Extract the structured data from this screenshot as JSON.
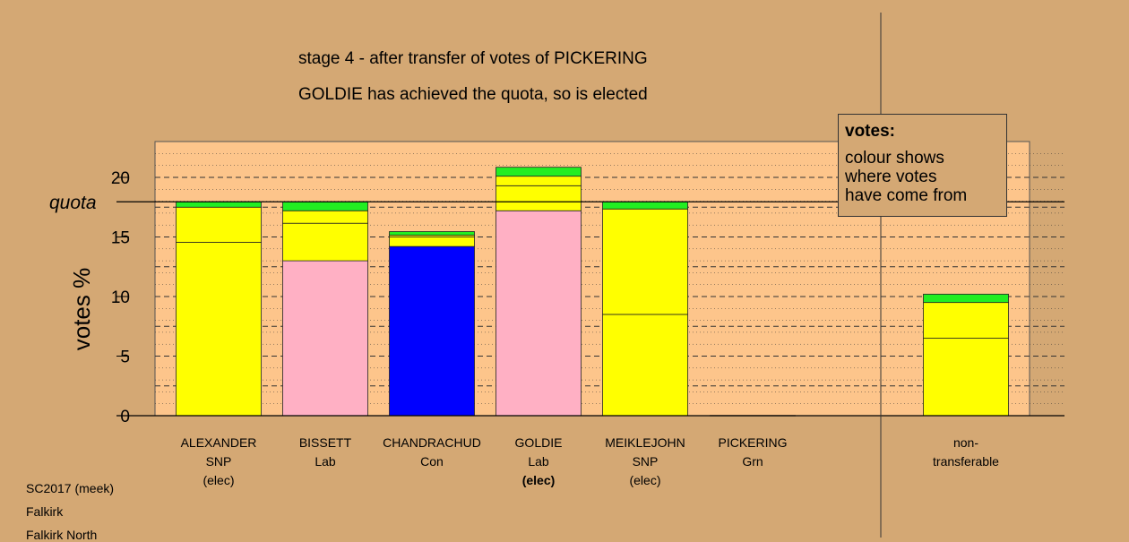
{
  "titles": {
    "line1": "stage 4 - after transfer of votes of PICKERING",
    "line2": "GOLDIE has achieved the quota, so is elected"
  },
  "legend": {
    "heading": "votes:",
    "text": "colour shows\nwhere votes\nhave come from"
  },
  "footer": [
    "SC2017 (meek)",
    "Falkirk",
    "Falkirk North"
  ],
  "colors": {
    "background": "#d4a874",
    "plot_area": "#fdc58b",
    "SNP": "#ffff00",
    "Lab": "#ffb0c4",
    "Con": "#0000ff",
    "Grn": "#22ee22"
  },
  "chart_data": {
    "type": "bar",
    "stacked": true,
    "ylabel": "votes %",
    "ylim": [
      0,
      22.5
    ],
    "yticks": [
      0,
      5,
      10,
      15,
      20
    ],
    "quota": 17.95,
    "quota_label": "quota",
    "grid": "dotted and dashed horizontal lines",
    "categories": [
      {
        "name": "ALEXANDER",
        "party": "SNP",
        "status": "(elec)",
        "status_bold": false
      },
      {
        "name": "BISSETT",
        "party": "Lab",
        "status": "",
        "status_bold": false
      },
      {
        "name": "CHANDRACHUD",
        "party": "Con",
        "status": "",
        "status_bold": false
      },
      {
        "name": "GOLDIE",
        "party": "Lab",
        "status": "(elec)",
        "status_bold": true
      },
      {
        "name": "MEIKLEJOHN",
        "party": "SNP",
        "status": "(elec)",
        "status_bold": false
      },
      {
        "name": "PICKERING",
        "party": "Grn",
        "status": "",
        "status_bold": false
      },
      {
        "name": "non-",
        "party": "transferable",
        "status": "",
        "status_bold": false
      }
    ],
    "stacks": [
      {
        "segments": [
          {
            "from": "SNP",
            "value": 14.55
          },
          {
            "from": "SNP",
            "value": 2.95
          },
          {
            "from": "Grn",
            "value": 0.45
          }
        ]
      },
      {
        "segments": [
          {
            "from": "Lab",
            "value": 13.0
          },
          {
            "from": "SNP",
            "value": 3.15
          },
          {
            "from": "SNP",
            "value": 1.05
          },
          {
            "from": "Grn",
            "value": 0.75
          }
        ]
      },
      {
        "segments": [
          {
            "from": "Con",
            "value": 14.2
          },
          {
            "from": "SNP",
            "value": 0.8
          },
          {
            "from": "SNP",
            "value": 0.15
          },
          {
            "from": "Grn",
            "value": 0.3
          }
        ]
      },
      {
        "segments": [
          {
            "from": "Lab",
            "value": 17.2
          },
          {
            "from": "SNP",
            "value": 2.1
          },
          {
            "from": "SNP",
            "value": 0.8
          },
          {
            "from": "Grn",
            "value": 0.75
          }
        ]
      },
      {
        "segments": [
          {
            "from": "SNP",
            "value": 8.5
          },
          {
            "from": "SNP",
            "value": 8.85
          },
          {
            "from": "Grn",
            "value": 0.6
          }
        ]
      },
      {
        "segments": [
          {
            "from": "Grn",
            "value": 0.02
          }
        ]
      },
      {
        "segments": [
          {
            "from": "SNP",
            "value": 6.5
          },
          {
            "from": "SNP",
            "value": 3.0
          },
          {
            "from": "Grn",
            "value": 0.7
          }
        ]
      }
    ]
  }
}
